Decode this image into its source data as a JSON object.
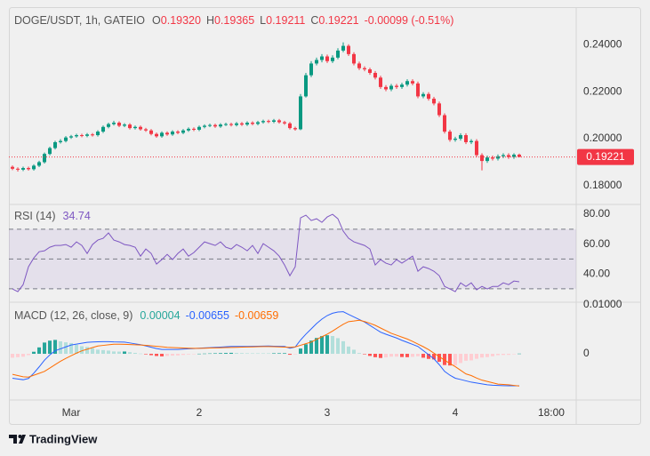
{
  "header": {
    "symbol": "DOGE/USDT, 1h, GATEIO",
    "ohlc": [
      {
        "key": "O",
        "value": "0.19320"
      },
      {
        "key": "H",
        "value": "0.19365"
      },
      {
        "key": "L",
        "value": "0.19211"
      },
      {
        "key": "C",
        "value": "0.19221"
      }
    ],
    "change": "-0.00099 (-0.51%)"
  },
  "chart_data": [
    {
      "type": "candlestick",
      "ylim": [
        0.172,
        0.256
      ],
      "yticks": [
        {
          "value": 0.18,
          "label": "0.18000"
        },
        {
          "value": 0.2,
          "label": "0.20000"
        },
        {
          "value": 0.22,
          "label": "0.22000"
        },
        {
          "value": 0.24,
          "label": "0.24000"
        }
      ],
      "up_color": "#089981",
      "down_color": "#f23645",
      "last_price": {
        "value": 0.19221,
        "label": "0.19221"
      },
      "open": [
        0.188,
        0.1872,
        0.1868,
        0.1875,
        0.187,
        0.1885,
        0.19,
        0.1935,
        0.196,
        0.1985,
        0.199,
        0.2005,
        0.201,
        0.2015,
        0.2012,
        0.2018,
        0.2015,
        0.203,
        0.205,
        0.2062,
        0.2068,
        0.2055,
        0.206,
        0.2045,
        0.205,
        0.204,
        0.2035,
        0.202,
        0.201,
        0.2025,
        0.2018,
        0.203,
        0.2025,
        0.2035,
        0.2042,
        0.2038,
        0.205,
        0.2055,
        0.2058,
        0.2052,
        0.206,
        0.2062,
        0.2058,
        0.2065,
        0.206,
        0.2068,
        0.2063,
        0.207,
        0.2075,
        0.2072,
        0.2078,
        0.207,
        0.2065,
        0.2045,
        0.204,
        0.218,
        0.227,
        0.232,
        0.2335,
        0.235,
        0.233,
        0.2345,
        0.2375,
        0.2395,
        0.236,
        0.232,
        0.23,
        0.2295,
        0.228,
        0.226,
        0.222,
        0.221,
        0.2225,
        0.222,
        0.223,
        0.2245,
        0.2235,
        0.218,
        0.219,
        0.217,
        0.215,
        0.21,
        0.203,
        0.1995,
        0.2,
        0.2015,
        0.1985,
        0.199,
        0.193,
        0.1905,
        0.192,
        0.1915,
        0.1925,
        0.193,
        0.1922,
        0.1932
      ],
      "high": [
        0.1886,
        0.1878,
        0.1881,
        0.1881,
        0.1891,
        0.1906,
        0.1941,
        0.1966,
        0.1991,
        0.1998,
        0.2011,
        0.2016,
        0.2021,
        0.2021,
        0.2024,
        0.2024,
        0.2036,
        0.2056,
        0.2068,
        0.2076,
        0.2074,
        0.2066,
        0.2066,
        0.2056,
        0.2056,
        0.2046,
        0.2041,
        0.2026,
        0.2031,
        0.2031,
        0.2036,
        0.2036,
        0.2041,
        0.2048,
        0.2048,
        0.2056,
        0.2061,
        0.2064,
        0.2064,
        0.2066,
        0.2068,
        0.2068,
        0.2071,
        0.2071,
        0.2074,
        0.2074,
        0.2076,
        0.2081,
        0.2081,
        0.2084,
        0.2084,
        0.2076,
        0.2071,
        0.2051,
        0.219,
        0.228,
        0.233,
        0.2345,
        0.236,
        0.2358,
        0.2355,
        0.2385,
        0.241,
        0.2402,
        0.2368,
        0.2328,
        0.2308,
        0.2302,
        0.2288,
        0.2268,
        0.2228,
        0.2233,
        0.2233,
        0.2238,
        0.2253,
        0.2253,
        0.2243,
        0.2198,
        0.2198,
        0.2178,
        0.2158,
        0.2108,
        0.2038,
        0.2008,
        0.2023,
        0.2023,
        0.1998,
        0.1998,
        0.1938,
        0.1928,
        0.1928,
        0.1933,
        0.1938,
        0.1938,
        0.1938,
        0.19365
      ],
      "low": [
        0.1866,
        0.186,
        0.1862,
        0.1864,
        0.1864,
        0.1879,
        0.1894,
        0.1929,
        0.1954,
        0.1979,
        0.1984,
        0.1999,
        0.2004,
        0.2006,
        0.2006,
        0.2009,
        0.2009,
        0.2024,
        0.2044,
        0.2056,
        0.2049,
        0.2049,
        0.2039,
        0.2039,
        0.2034,
        0.2029,
        0.2014,
        0.2004,
        0.2004,
        0.2012,
        0.2012,
        0.2019,
        0.2019,
        0.2029,
        0.2032,
        0.2032,
        0.2044,
        0.2049,
        0.2046,
        0.2046,
        0.2054,
        0.2052,
        0.2052,
        0.2054,
        0.2054,
        0.2057,
        0.2057,
        0.2064,
        0.2066,
        0.2066,
        0.2064,
        0.2059,
        0.2039,
        0.2034,
        0.2036,
        0.2175,
        0.2262,
        0.2312,
        0.2325,
        0.2322,
        0.2322,
        0.2338,
        0.2368,
        0.2352,
        0.2312,
        0.2292,
        0.2287,
        0.2272,
        0.2252,
        0.2212,
        0.2202,
        0.2202,
        0.2212,
        0.2212,
        0.2222,
        0.2227,
        0.2172,
        0.2172,
        0.2162,
        0.2142,
        0.2092,
        0.2022,
        0.1987,
        0.1987,
        0.1992,
        0.1977,
        0.1977,
        0.1922,
        0.1865,
        0.1897,
        0.1907,
        0.1907,
        0.1917,
        0.1914,
        0.1914,
        0.19211
      ],
      "close": [
        0.1872,
        0.1868,
        0.1875,
        0.187,
        0.1885,
        0.19,
        0.1935,
        0.196,
        0.1985,
        0.199,
        0.2005,
        0.201,
        0.2015,
        0.2012,
        0.2018,
        0.2015,
        0.203,
        0.205,
        0.2062,
        0.2068,
        0.2055,
        0.206,
        0.2045,
        0.205,
        0.204,
        0.2035,
        0.202,
        0.201,
        0.2025,
        0.2018,
        0.203,
        0.2025,
        0.2035,
        0.2042,
        0.2038,
        0.205,
        0.2055,
        0.2058,
        0.2052,
        0.206,
        0.2062,
        0.2058,
        0.2065,
        0.206,
        0.2068,
        0.2063,
        0.207,
        0.2075,
        0.2072,
        0.2078,
        0.207,
        0.2065,
        0.2045,
        0.204,
        0.218,
        0.227,
        0.232,
        0.2335,
        0.235,
        0.233,
        0.2345,
        0.2375,
        0.2395,
        0.236,
        0.232,
        0.23,
        0.2295,
        0.228,
        0.226,
        0.222,
        0.221,
        0.2225,
        0.222,
        0.223,
        0.2245,
        0.2235,
        0.218,
        0.219,
        0.217,
        0.215,
        0.21,
        0.203,
        0.1995,
        0.2,
        0.2015,
        0.1985,
        0.199,
        0.193,
        0.1905,
        0.192,
        0.1915,
        0.1925,
        0.193,
        0.1922,
        0.1932,
        0.19221
      ]
    },
    {
      "type": "line",
      "title": "RSI (14)",
      "color": "#7e57c2",
      "ylim": [
        21,
        86.6
      ],
      "yticks": [
        {
          "value": 40,
          "label": "40.00"
        },
        {
          "value": 60,
          "label": "60.00"
        },
        {
          "value": 80,
          "label": "80.00"
        }
      ],
      "levels": [
        70,
        50,
        30
      ],
      "values": [
        29.9,
        28.1,
        32.8,
        44.8,
        50.7,
        54.9,
        55.5,
        57.9,
        59.1,
        59.1,
        59.7,
        57.9,
        61.5,
        59.1,
        53.7,
        59.7,
        62.7,
        63.9,
        67.5,
        62.7,
        61.5,
        59.7,
        59.1,
        57.9,
        51.9,
        56.7,
        53.7,
        46.6,
        49.6,
        53.1,
        49.6,
        53.7,
        56.7,
        51.9,
        54.3,
        57.9,
        61.5,
        60.3,
        59.1,
        61.5,
        57.9,
        56.7,
        59.7,
        57.9,
        55.5,
        59.1,
        53.7,
        60.3,
        57.9,
        55.5,
        51.9,
        46.0,
        38.8,
        44.8,
        77.6,
        79.4,
        75.8,
        77.0,
        74.6,
        78.2,
        80.0,
        77.0,
        68.7,
        63.9,
        61.5,
        60.3,
        59.1,
        56.7,
        46.0,
        49.6,
        47.2,
        46.0,
        49.6,
        47.2,
        49.6,
        51.9,
        41.8,
        44.8,
        43.6,
        41.8,
        38.8,
        31.6,
        29.9,
        28.1,
        34.0,
        31.6,
        34.0,
        29.3,
        31.6,
        29.9,
        31.6,
        31.6,
        34.0,
        32.8,
        35.2,
        34.74
      ]
    },
    {
      "type": "macd",
      "title": "MACD (12, 26, close, 9)",
      "x": [
        0,
        1,
        2,
        3,
        4,
        5,
        6,
        7,
        8,
        9,
        10,
        11,
        12,
        13,
        14,
        15,
        16,
        17,
        18,
        19,
        20,
        21,
        22,
        23,
        24,
        25,
        26,
        27,
        28,
        29,
        30,
        31,
        32,
        33,
        34,
        35,
        36,
        37,
        38,
        39,
        40,
        41,
        42,
        43,
        44,
        45,
        46,
        47,
        48,
        49,
        50,
        51,
        52,
        53,
        54,
        55,
        56,
        57,
        58,
        59,
        60,
        61,
        62,
        63,
        64,
        65,
        66,
        67,
        68,
        69,
        70,
        71,
        72,
        73,
        74,
        75,
        76,
        77,
        78,
        79,
        80,
        81,
        82,
        83,
        84,
        85,
        86,
        87,
        88,
        89,
        90,
        91,
        92,
        93,
        94,
        95
      ],
      "xlim": [
        -0.67,
        105.67
      ],
      "xticks": [
        {
          "value": 11,
          "label": "Mar"
        },
        {
          "value": 35,
          "label": "2"
        },
        {
          "value": 59,
          "label": "3"
        },
        {
          "value": 83,
          "label": "4"
        },
        {
          "value": 101,
          "label": "18:00"
        }
      ],
      "ylim": [
        -0.00945,
        0.01055
      ],
      "yticks": [
        0,
        {
          "value": 0.01,
          "label": "0.01000"
        }
      ],
      "histogram": {
        "colors": {
          "up_grow": "#26a69a",
          "up_fall": "#b2dfdb",
          "down_fall": "#ff5252",
          "down_grow": "#ffcdd2"
        },
        "values": [
          -0.0008,
          -0.0007,
          -0.0006,
          -0.00027,
          0.00042,
          0.00131,
          0.0023,
          0.00269,
          0.00284,
          0.00255,
          0.00235,
          0.0022,
          0.00184,
          0.00155,
          0.0014,
          0.00115,
          0.00085,
          0.00076,
          0.00065,
          0.00048,
          0.00045,
          0.00047,
          0.00033,
          0.00019,
          5e-05,
          -0.00011,
          -0.00028,
          -0.00045,
          -0.00053,
          -0.00043,
          -0.00037,
          -0.00033,
          -0.00023,
          -0.00013,
          -3e-05,
          2e-05,
          5e-05,
          8e-05,
          0.00011,
          0.00014,
          0.00017,
          0.0002,
          0.00017,
          0.00014,
          0.00011,
          0.0001,
          0.0001,
          0.0001,
          0.0001,
          0.00011,
          0.00012,
          0.00013,
          -0.00019,
          -3e-05,
          0.00108,
          0.00195,
          0.0027,
          0.00324,
          0.00362,
          0.0038,
          0.00364,
          0.0032,
          0.00257,
          0.00149,
          0.00083,
          0.00015,
          -0.0001,
          -0.00043,
          -0.0007,
          -0.00085,
          -0.00073,
          -0.00058,
          -0.00058,
          -0.00066,
          -0.00069,
          -0.00062,
          -0.0005,
          -0.0008,
          -0.00104,
          -0.00116,
          -0.00164,
          -0.0023,
          -0.00239,
          -0.00237,
          -0.00189,
          -0.00142,
          -0.00135,
          -0.00102,
          -0.00077,
          -0.00068,
          -0.0005,
          -0.00028,
          -0.00024,
          -0.00021,
          -9e-05,
          4e-05
        ]
      },
      "lines": [
        {
          "color": "#2962ff",
          "values": [
            -0.005,
            -0.00515,
            -0.0053,
            -0.00504,
            -0.00396,
            -0.00268,
            -0.0013,
            -0.00022,
            0.00063,
            0.00102,
            0.00141,
            0.0018,
            0.00198,
            0.00216,
            0.00234,
            0.00242,
            0.00245,
            0.00248,
            0.00249,
            0.00244,
            0.00242,
            0.0024,
            0.00222,
            0.00204,
            0.00186,
            0.00162,
            0.00135,
            0.00108,
            0.0009,
            0.0009,
            0.0009,
            0.0009,
            0.00096,
            0.00102,
            0.00108,
            0.00114,
            0.0012,
            0.00126,
            0.00132,
            0.00138,
            0.00144,
            0.0015,
            0.0015,
            0.0015,
            0.0015,
            0.00152,
            0.00155,
            0.00158,
            0.00159,
            0.00156,
            0.00153,
            0.0015,
            0.00114,
            0.00138,
            0.00282,
            0.00402,
            0.0051,
            0.00618,
            0.0071,
            0.00782,
            0.0083,
            0.00855,
            0.00861,
            0.00807,
            0.00754,
            0.00702,
            0.0065,
            0.00581,
            0.00512,
            0.00443,
            0.00401,
            0.00362,
            0.00323,
            0.00276,
            0.00234,
            0.00192,
            0.0015,
            0.00066,
            -0.00018,
            -0.00102,
            -0.00222,
            -0.0036,
            -0.00438,
            -0.00499,
            -0.00526,
            -0.00553,
            -0.0058,
            -0.00598,
            -0.00616,
            -0.00634,
            -0.00643,
            -0.00648,
            -0.00652,
            -0.00655,
            -0.00655,
            -0.00655
          ]
        },
        {
          "color": "#ff6d00",
          "values": [
            -0.0042,
            -0.00445,
            -0.0047,
            -0.00477,
            -0.00438,
            -0.00399,
            -0.0036,
            -0.00291,
            -0.00221,
            -0.00153,
            -0.00094,
            -0.0004,
            0.00014,
            0.00061,
            0.00094,
            0.00127,
            0.0016,
            0.00172,
            0.00184,
            0.00196,
            0.00197,
            0.00193,
            0.00189,
            0.00185,
            0.00181,
            0.00173,
            0.00163,
            0.00153,
            0.00143,
            0.00133,
            0.00127,
            0.00123,
            0.00119,
            0.00115,
            0.00111,
            0.00112,
            0.00115,
            0.00118,
            0.00121,
            0.00124,
            0.00127,
            0.0013,
            0.00133,
            0.00136,
            0.00139,
            0.00142,
            0.00145,
            0.00148,
            0.00149,
            0.00145,
            0.00141,
            0.00137,
            0.00133,
            0.00141,
            0.00174,
            0.00207,
            0.0024,
            0.00294,
            0.00348,
            0.00402,
            0.00466,
            0.00535,
            0.00604,
            0.00658,
            0.00671,
            0.00687,
            0.0066,
            0.00624,
            0.00582,
            0.00528,
            0.00474,
            0.0042,
            0.00381,
            0.00342,
            0.00303,
            0.00254,
            0.002,
            0.00146,
            0.00086,
            0.00014,
            -0.00058,
            -0.0013,
            -0.00199,
            -0.00262,
            -0.00337,
            -0.00411,
            -0.00445,
            -0.00496,
            -0.00539,
            -0.00566,
            -0.00593,
            -0.0062,
            -0.00628,
            -0.00634,
            -0.00646,
            -0.00659
          ]
        }
      ]
    }
  ],
  "brand": "TradingView"
}
